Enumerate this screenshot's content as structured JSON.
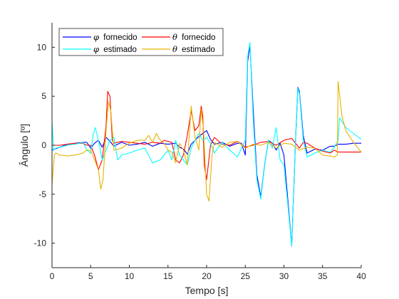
{
  "chart_data": {
    "type": "line",
    "xlabel": "Tempo [s]",
    "ylabel": "Ângulo [º]",
    "xlim": [
      0,
      40
    ],
    "ylim": [
      -12.5,
      12.5
    ],
    "xticks": [
      0,
      5,
      10,
      15,
      20,
      25,
      30,
      35,
      40
    ],
    "yticks": [
      -10,
      -5,
      0,
      5,
      10
    ],
    "grid": false,
    "legend_position": "top-left",
    "series": [
      {
        "name": "φ fornecido",
        "symbol": "φ",
        "label": "fornecido",
        "color": "#0000ff",
        "x": [
          0,
          1,
          2,
          3,
          4,
          4.5,
          5,
          5.5,
          6,
          6.5,
          7,
          7.5,
          8,
          9,
          10,
          11,
          12,
          13,
          14,
          15,
          16,
          16.5,
          17,
          17.5,
          18,
          18.5,
          19,
          19.5,
          20,
          20.5,
          21,
          22,
          23,
          24,
          24.5,
          25,
          25.3,
          25.6,
          26,
          26.5,
          27,
          27.5,
          28,
          28.5,
          29,
          29.5,
          30,
          30.5,
          31,
          31.5,
          31.8,
          32,
          32.5,
          33,
          34,
          35,
          36,
          36.5,
          37,
          38,
          39,
          40
        ],
        "y": [
          -0.5,
          -0.2,
          0.1,
          0.2,
          0.3,
          0.3,
          -0.3,
          0.2,
          0.5,
          -0.2,
          0.8,
          0.4,
          -0.1,
          0.3,
          0,
          0.1,
          0.3,
          -0.1,
          0.2,
          0.1,
          0.2,
          -0.2,
          -0.4,
          -0.9,
          0.1,
          0.5,
          0.9,
          1.2,
          1.5,
          0.6,
          0.1,
          0.3,
          -0.1,
          0.2,
          0.2,
          -1,
          8.5,
          10.2,
          4,
          -3,
          -5.3,
          -2,
          0.5,
          0.2,
          -0.5,
          0.2,
          -1,
          -5.5,
          -10.3,
          0.5,
          5.9,
          5.5,
          1,
          -0.8,
          -0.4,
          -0.5,
          -0.1,
          -0.1,
          0.1,
          0.1,
          0.2,
          0.2
        ]
      },
      {
        "name": "θ fornecido",
        "symbol": "θ",
        "label": "fornecido",
        "color": "#ff0000",
        "x": [
          0,
          1,
          2,
          3,
          4,
          4.5,
          5,
          5.5,
          6,
          6.5,
          7,
          7.2,
          7.5,
          7.8,
          8,
          9,
          10,
          11,
          12,
          13,
          14,
          14.5,
          15,
          15.5,
          16,
          16.5,
          17,
          17.5,
          18,
          18.5,
          19,
          19.3,
          19.5,
          19.7,
          20,
          20.5,
          21,
          22,
          23,
          24,
          25,
          26,
          27,
          28,
          29,
          30,
          31,
          32,
          32.5,
          33,
          34,
          35,
          36,
          36.5,
          37,
          38,
          39,
          40
        ],
        "y": [
          0,
          0,
          0.1,
          0.2,
          0.2,
          0,
          0,
          -1,
          -2.5,
          -1.5,
          2,
          5.5,
          5,
          0.5,
          0.2,
          0.4,
          0.3,
          0.2,
          0.1,
          0.3,
          0.2,
          0.5,
          0.4,
          0.3,
          -1.5,
          -1.8,
          -1,
          1,
          3.5,
          1.5,
          2,
          4,
          3,
          -2,
          -3.5,
          0,
          0.8,
          0.1,
          0,
          0.4,
          -0.2,
          0,
          0.3,
          0.4,
          0,
          0.5,
          0.7,
          -0.3,
          0.3,
          0.2,
          -0.3,
          -0.6,
          -0.8,
          -0.5,
          -0.7,
          -0.7,
          -0.7,
          -0.7
        ]
      },
      {
        "name": "φ estimado",
        "symbol": "φ",
        "label": "estimado",
        "color": "#00ffff",
        "x": [
          0,
          0.2,
          0.5,
          1,
          2,
          3,
          4,
          4.5,
          5,
          5.3,
          5.6,
          6,
          6.5,
          7,
          7.5,
          8,
          8.5,
          9,
          10,
          11,
          12,
          13,
          14,
          15,
          15.5,
          16,
          16.5,
          17,
          17.5,
          18,
          18.5,
          19,
          19.5,
          20,
          20.5,
          21,
          22,
          23,
          24,
          24.5,
          25,
          25.3,
          25.6,
          26,
          26.5,
          27,
          27.5,
          28,
          28.5,
          29,
          29.5,
          30,
          30.5,
          31,
          31.5,
          31.8,
          32,
          32.5,
          33,
          34,
          35,
          36,
          36.5,
          37,
          37.2,
          38,
          39,
          40
        ],
        "y": [
          2.5,
          -0.5,
          -0.3,
          -0.2,
          0,
          0.1,
          0.3,
          -0.5,
          -0.8,
          1,
          1.8,
          0.5,
          -1.5,
          -0.5,
          0.5,
          0.8,
          -1.5,
          -1,
          -0.8,
          -0.5,
          -0.3,
          -1.8,
          -1.5,
          -0.5,
          -1.5,
          0.5,
          -1,
          -1.5,
          -2,
          -0.3,
          0.5,
          1.2,
          0.5,
          0.8,
          0.2,
          -0.8,
          0.3,
          -0.5,
          -1.2,
          -0.3,
          0.5,
          9,
          10.5,
          3,
          -3.5,
          -5.5,
          -2,
          0.5,
          -0.3,
          1.8,
          -1.5,
          -2,
          -6,
          -10.3,
          0.5,
          5.8,
          5.3,
          0.5,
          -1.2,
          -0.8,
          -0.5,
          -0.7,
          -0.2,
          0.5,
          2.8,
          1.8,
          1.2,
          0.6
        ]
      },
      {
        "name": "θ estimado",
        "symbol": "θ",
        "label": "estimado",
        "color": "#e6b300",
        "x": [
          0,
          0.3,
          0.5,
          1,
          2,
          3,
          4,
          4.5,
          5,
          5.5,
          6,
          6.3,
          6.6,
          7,
          7.3,
          7.6,
          8,
          9,
          10,
          11,
          12,
          12.5,
          13,
          13.5,
          14,
          14.5,
          15,
          15.5,
          16,
          16.5,
          17,
          17.5,
          18,
          18.5,
          19,
          19.3,
          19.6,
          20,
          20.3,
          20.7,
          21,
          22,
          23,
          24,
          25,
          26,
          27,
          28,
          29,
          30,
          31,
          32,
          33,
          34,
          35,
          36,
          36.5,
          36.9,
          37,
          37.5,
          38,
          39,
          40
        ],
        "y": [
          -4,
          -1,
          -0.8,
          -1,
          -1.1,
          -1,
          -0.8,
          -0.5,
          -0.5,
          -1.5,
          -2.5,
          -4.5,
          -3.5,
          1.5,
          4.5,
          3.5,
          -0.5,
          -0.3,
          0.2,
          0.5,
          0.5,
          1,
          0.3,
          1.2,
          0.5,
          0.2,
          -0.5,
          -0.7,
          -1.8,
          0.2,
          -0.5,
          -2,
          4,
          0.8,
          -0.5,
          3.7,
          1.5,
          -5,
          -5.7,
          -1,
          0.3,
          -0.2,
          0.3,
          0.4,
          -0.3,
          0.1,
          0,
          0.3,
          -0.3,
          0.2,
          0.1,
          -0.5,
          -0.2,
          -0.3,
          -1,
          -1.1,
          -1.2,
          -1,
          6.5,
          3,
          1.5,
          0.3,
          -0.7
        ]
      }
    ]
  }
}
